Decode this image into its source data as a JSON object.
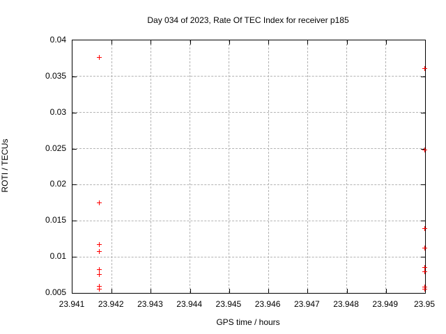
{
  "chart_data": {
    "type": "scatter",
    "title": "Day 034 of 2023, Rate Of TEC Index for receiver p185",
    "xlabel": "GPS time / hours",
    "ylabel": "ROTI / TECUs",
    "xlim": [
      23.941,
      23.95
    ],
    "ylim": [
      0.005,
      0.04
    ],
    "xticks": [
      23.941,
      23.942,
      23.943,
      23.944,
      23.945,
      23.946,
      23.947,
      23.948,
      23.949,
      23.95
    ],
    "xtick_labels": [
      "23.941",
      "23.942",
      "23.943",
      "23.944",
      "23.945",
      "23.946",
      "23.947",
      "23.948",
      "23.949",
      "23.95"
    ],
    "yticks": [
      0.005,
      0.01,
      0.015,
      0.02,
      0.025,
      0.03,
      0.035,
      0.04
    ],
    "ytick_labels": [
      "0.005",
      "0.01",
      "0.015",
      "0.02",
      "0.025",
      "0.03",
      "0.035",
      "0.04"
    ],
    "grid": true,
    "legend_position": "none",
    "marker": {
      "shape": "plus",
      "color": "#ff0000",
      "size": 7
    },
    "series": [
      {
        "name": "ROTI",
        "points": [
          {
            "x": 23.9417,
            "y": 0.0376
          },
          {
            "x": 23.9417,
            "y": 0.0174
          },
          {
            "x": 23.9417,
            "y": 0.0117
          },
          {
            "x": 23.9417,
            "y": 0.0107
          },
          {
            "x": 23.9417,
            "y": 0.0082
          },
          {
            "x": 23.9417,
            "y": 0.0075
          },
          {
            "x": 23.9417,
            "y": 0.0059
          },
          {
            "x": 23.9417,
            "y": 0.0055
          },
          {
            "x": 23.95,
            "y": 0.036
          },
          {
            "x": 23.95,
            "y": 0.0248
          },
          {
            "x": 23.95,
            "y": 0.0139
          },
          {
            "x": 23.95,
            "y": 0.0112
          },
          {
            "x": 23.95,
            "y": 0.0085
          },
          {
            "x": 23.95,
            "y": 0.0079
          },
          {
            "x": 23.95,
            "y": 0.0058
          },
          {
            "x": 23.95,
            "y": 0.0055
          }
        ]
      }
    ]
  },
  "colors": {
    "background": "#ffffff",
    "axis": "#000000",
    "grid": "#b3b3b3",
    "marker": "#ff0000",
    "text": "#000000"
  }
}
